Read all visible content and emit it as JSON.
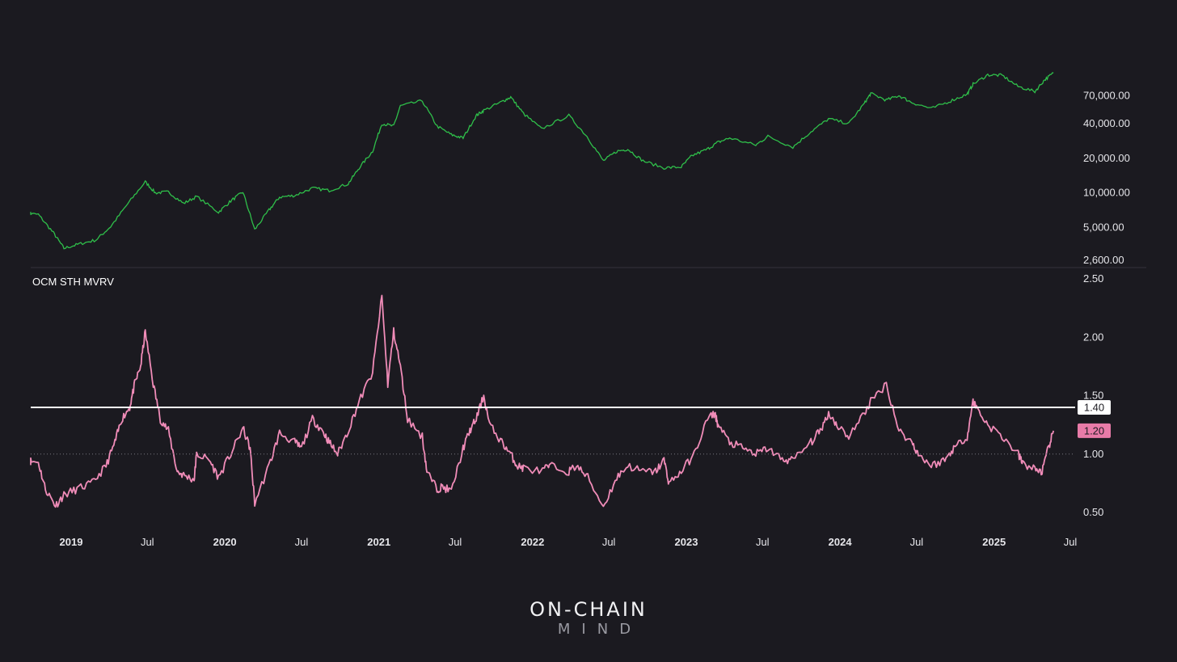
{
  "brand": {
    "title": "ON-CHAIN",
    "subtitle": "MIND"
  },
  "colors": {
    "background": "#1b1a20",
    "price": "#2fbf4a",
    "mvrv": "#f08cb8",
    "threshold_line": "#ffffff",
    "badge_current": "#e87ba8"
  },
  "chart_data": [
    {
      "type": "line",
      "panel": "price",
      "title": "",
      "xlabel": "",
      "ylabel": "",
      "y_scale": "log",
      "ylim": [
        2600,
        130000
      ],
      "y_ticks": [
        2600,
        5000,
        10000,
        20000,
        40000,
        70000
      ],
      "y_tick_labels": [
        "2,600.00",
        "5,000.00",
        "10,000.00",
        "20,000.00",
        "40,000.00",
        "70,000.00"
      ],
      "series": [
        {
          "x": [
            "2018-09-01",
            "2018-10-15",
            "2018-11-20",
            "2018-12-15",
            "2019-01-20",
            "2019-03-01",
            "2019-04-05",
            "2019-05-15",
            "2019-06-26",
            "2019-07-20",
            "2019-08-20",
            "2019-09-25",
            "2019-10-26",
            "2019-12-17",
            "2020-01-15",
            "2020-02-13",
            "2020-03-12",
            "2020-04-15",
            "2020-05-10",
            "2020-06-15",
            "2020-07-27",
            "2020-09-05",
            "2020-10-20",
            "2020-11-15",
            "2020-12-17",
            "2021-01-08",
            "2021-02-05",
            "2021-02-21",
            "2021-04-14",
            "2021-05-19",
            "2021-06-22",
            "2021-07-20",
            "2021-08-20",
            "2021-09-07",
            "2021-10-20",
            "2021-11-10",
            "2021-12-10",
            "2022-01-22",
            "2022-03-28",
            "2022-05-10",
            "2022-06-18",
            "2022-07-20",
            "2022-08-15",
            "2022-09-20",
            "2022-11-09",
            "2022-12-20",
            "2023-01-14",
            "2023-02-20",
            "2023-03-17",
            "2023-04-14",
            "2023-06-15",
            "2023-07-14",
            "2023-09-11",
            "2023-10-24",
            "2023-12-05",
            "2024-01-22",
            "2024-02-28",
            "2024-03-14",
            "2024-04-20",
            "2024-05-20",
            "2024-06-20",
            "2024-08-05",
            "2024-09-20",
            "2024-10-29",
            "2024-11-12",
            "2024-12-17",
            "2025-01-20",
            "2025-02-27",
            "2025-04-08",
            "2025-05-01",
            "2025-05-22"
          ],
          "values": [
            6700,
            6500,
            4500,
            3300,
            3600,
            3900,
            5100,
            8000,
            12500,
            10000,
            10200,
            8100,
            9300,
            6800,
            8500,
            10200,
            4800,
            7100,
            9200,
            9500,
            11000,
            10500,
            12000,
            16500,
            23000,
            40000,
            38000,
            57000,
            63000,
            38000,
            32000,
            30000,
            47000,
            52000,
            62000,
            68000,
            49000,
            36000,
            47000,
            31000,
            19000,
            23000,
            24000,
            19000,
            16500,
            16800,
            21000,
            24000,
            27500,
            30000,
            26000,
            31000,
            25000,
            34000,
            44000,
            40000,
            60000,
            73000,
            64000,
            70000,
            61000,
            54000,
            63000,
            72000,
            88000,
            106000,
            105000,
            84000,
            76000,
            96000,
            110000
          ]
        }
      ]
    },
    {
      "type": "line",
      "panel": "mvrv",
      "label": "OCM STH MVRV",
      "title": "",
      "xlabel": "",
      "ylabel": "",
      "ylim": [
        0.5,
        2.5
      ],
      "y_ticks": [
        0.5,
        1.0,
        1.5,
        2.0,
        2.5
      ],
      "y_tick_labels": [
        "0.50",
        "1.00",
        "1.50",
        "2.00",
        "2.50"
      ],
      "reference_line": {
        "value": 1.0,
        "style": "dotted"
      },
      "threshold_line": {
        "value": 1.4,
        "label": "1.40"
      },
      "current_value_badge": {
        "value": 1.2,
        "label": "1.20"
      },
      "series": [
        {
          "name": "OCM STH MVRV",
          "x": [
            "2018-09-01",
            "2018-10-15",
            "2018-11-01",
            "2018-11-25",
            "2018-12-15",
            "2019-01-15",
            "2019-02-20",
            "2019-03-25",
            "2019-04-15",
            "2019-05-01",
            "2019-05-20",
            "2019-06-01",
            "2019-06-15",
            "2019-06-26",
            "2019-07-15",
            "2019-08-01",
            "2019-08-20",
            "2019-09-10",
            "2019-09-25",
            "2019-10-20",
            "2019-10-26",
            "2019-11-25",
            "2019-12-17",
            "2020-01-15",
            "2020-02-13",
            "2020-03-01",
            "2020-03-12",
            "2020-04-15",
            "2020-05-10",
            "2020-06-15",
            "2020-07-01",
            "2020-07-27",
            "2020-08-20",
            "2020-09-05",
            "2020-09-25",
            "2020-10-20",
            "2020-11-15",
            "2020-12-17",
            "2021-01-08",
            "2021-01-22",
            "2021-02-05",
            "2021-02-21",
            "2021-03-10",
            "2021-04-14",
            "2021-04-25",
            "2021-05-19",
            "2021-06-01",
            "2021-06-22",
            "2021-07-20",
            "2021-08-05",
            "2021-08-20",
            "2021-09-07",
            "2021-09-21",
            "2021-10-20",
            "2021-11-10",
            "2021-11-25",
            "2021-12-10",
            "2022-01-22",
            "2022-02-10",
            "2022-03-28",
            "2022-04-15",
            "2022-05-12",
            "2022-06-18",
            "2022-07-20",
            "2022-08-15",
            "2022-09-20",
            "2022-10-20",
            "2022-11-09",
            "2022-11-21",
            "2022-12-20",
            "2023-01-20",
            "2023-02-20",
            "2023-03-10",
            "2023-03-17",
            "2023-04-14",
            "2023-05-15",
            "2023-06-15",
            "2023-07-14",
            "2023-08-17",
            "2023-09-11",
            "2023-10-24",
            "2023-11-15",
            "2023-12-05",
            "2023-12-25",
            "2024-01-22",
            "2024-02-28",
            "2024-03-14",
            "2024-04-20",
            "2024-05-20",
            "2024-06-20",
            "2024-07-05",
            "2024-08-05",
            "2024-09-06",
            "2024-09-27",
            "2024-10-29",
            "2024-11-12",
            "2024-11-20",
            "2024-12-17",
            "2025-01-20",
            "2025-02-27",
            "2025-03-10",
            "2025-04-08",
            "2025-04-25",
            "2025-05-10",
            "2025-05-22"
          ],
          "values": [
            0.95,
            0.93,
            0.7,
            0.56,
            0.65,
            0.7,
            0.75,
            0.9,
            1.1,
            1.3,
            1.4,
            1.6,
            1.75,
            2.05,
            1.6,
            1.3,
            1.2,
            0.85,
            0.82,
            0.78,
            1.0,
            0.95,
            0.8,
            1.0,
            1.22,
            1.05,
            0.58,
            0.9,
            1.18,
            1.1,
            1.05,
            1.3,
            1.2,
            1.1,
            1.0,
            1.2,
            1.45,
            1.7,
            2.35,
            1.6,
            2.05,
            1.75,
            1.3,
            1.15,
            0.85,
            0.7,
            0.72,
            0.68,
            1.05,
            1.2,
            1.3,
            1.5,
            1.25,
            1.1,
            1.0,
            0.9,
            0.88,
            0.85,
            0.9,
            0.85,
            0.9,
            0.8,
            0.55,
            0.8,
            0.9,
            0.85,
            0.85,
            0.95,
            0.75,
            0.85,
            1.0,
            1.3,
            1.35,
            1.25,
            1.1,
            1.05,
            1.0,
            1.05,
            0.95,
            0.95,
            1.1,
            1.2,
            1.35,
            1.25,
            1.15,
            1.35,
            1.45,
            1.6,
            1.2,
            1.1,
            1.0,
            0.9,
            0.95,
            1.05,
            1.15,
            1.45,
            1.4,
            1.25,
            1.15,
            1.0,
            0.92,
            0.87,
            0.85,
            1.05,
            1.2
          ]
        }
      ]
    }
  ],
  "x_axis": {
    "ticks": [
      {
        "date": "2019-01-01",
        "label": "2019",
        "bold": true
      },
      {
        "date": "2019-07-01",
        "label": "Jul",
        "bold": false
      },
      {
        "date": "2020-01-01",
        "label": "2020",
        "bold": true
      },
      {
        "date": "2020-07-01",
        "label": "Jul",
        "bold": false
      },
      {
        "date": "2021-01-01",
        "label": "2021",
        "bold": true
      },
      {
        "date": "2021-07-01",
        "label": "Jul",
        "bold": false
      },
      {
        "date": "2022-01-01",
        "label": "2022",
        "bold": true
      },
      {
        "date": "2022-07-01",
        "label": "Jul",
        "bold": false
      },
      {
        "date": "2023-01-01",
        "label": "2023",
        "bold": true
      },
      {
        "date": "2023-07-01",
        "label": "Jul",
        "bold": false
      },
      {
        "date": "2024-01-01",
        "label": "2024",
        "bold": true
      },
      {
        "date": "2024-07-01",
        "label": "Jul",
        "bold": false
      },
      {
        "date": "2025-01-01",
        "label": "2025",
        "bold": true
      },
      {
        "date": "2025-07-01",
        "label": "Jul",
        "bold": false
      }
    ]
  }
}
